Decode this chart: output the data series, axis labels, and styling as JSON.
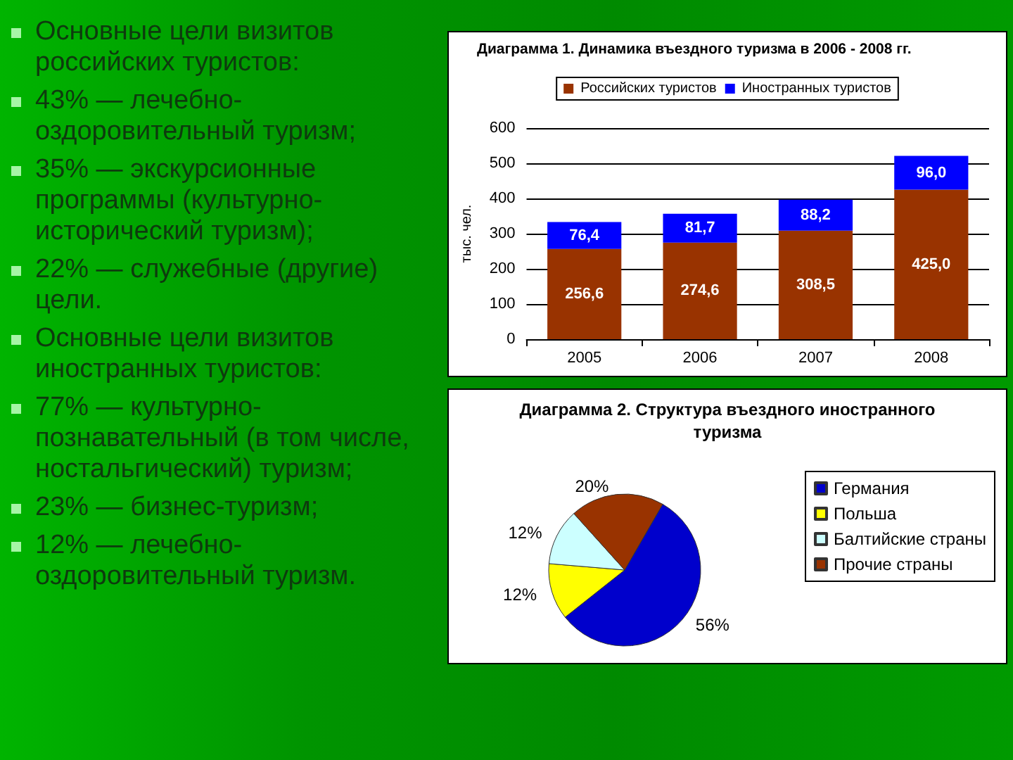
{
  "chart_data": [
    {
      "type": "other",
      "annotations": [
        "Основные цели визитов российских туристов:",
        "43% — лечебно-оздоровительный туризм;",
        "35% — экскурсионные программы (культурно-исторический туризм);",
        "22% — служебные (другие) цели.",
        "Основные цели визитов иностранных туристов:",
        "77% — культурно-познавательный (в том числе, ностальгический) туризм;",
        "23% — бизнес-туризм;",
        "12% — лечебно-оздоровительный туризм."
      ]
    },
    {
      "type": "bar",
      "title": "Диаграмма 1. Динамика въездного туризма в 2006 - 2008 гг.",
      "ylabel": "тыс. чел.",
      "categories": [
        "2005",
        "2006",
        "2007",
        "2008"
      ],
      "stacked": true,
      "series": [
        {
          "name": "Российских туристов",
          "color": "#993300",
          "values": [
            256.6,
            274.6,
            308.5,
            425.0
          ],
          "value_labels": [
            "256,6",
            "274,6",
            "308,5",
            "425,0"
          ]
        },
        {
          "name": "Иностранных туристов",
          "color": "#0000ff",
          "values": [
            76.4,
            81.7,
            88.2,
            96.0
          ],
          "value_labels": [
            "76,4",
            "81,7",
            "88,2",
            "96,0"
          ]
        }
      ],
      "ylim": [
        0,
        600
      ],
      "yticks": [
        0,
        100,
        200,
        300,
        400,
        500,
        600
      ],
      "grid": "y",
      "legend": "top"
    },
    {
      "type": "pie",
      "title": "Диаграмма 2. Структура въездного иностранного туризма",
      "categories": [
        "Германия",
        "Польша",
        "Балтийские страны",
        "Прочие страны"
      ],
      "values": [
        56,
        12,
        12,
        20
      ],
      "colors": [
        "#0000cc",
        "#ffff00",
        "#ccffff",
        "#993300"
      ],
      "value_labels": [
        "56%",
        "12%",
        "12%",
        "20%"
      ],
      "legend": "right"
    }
  ]
}
